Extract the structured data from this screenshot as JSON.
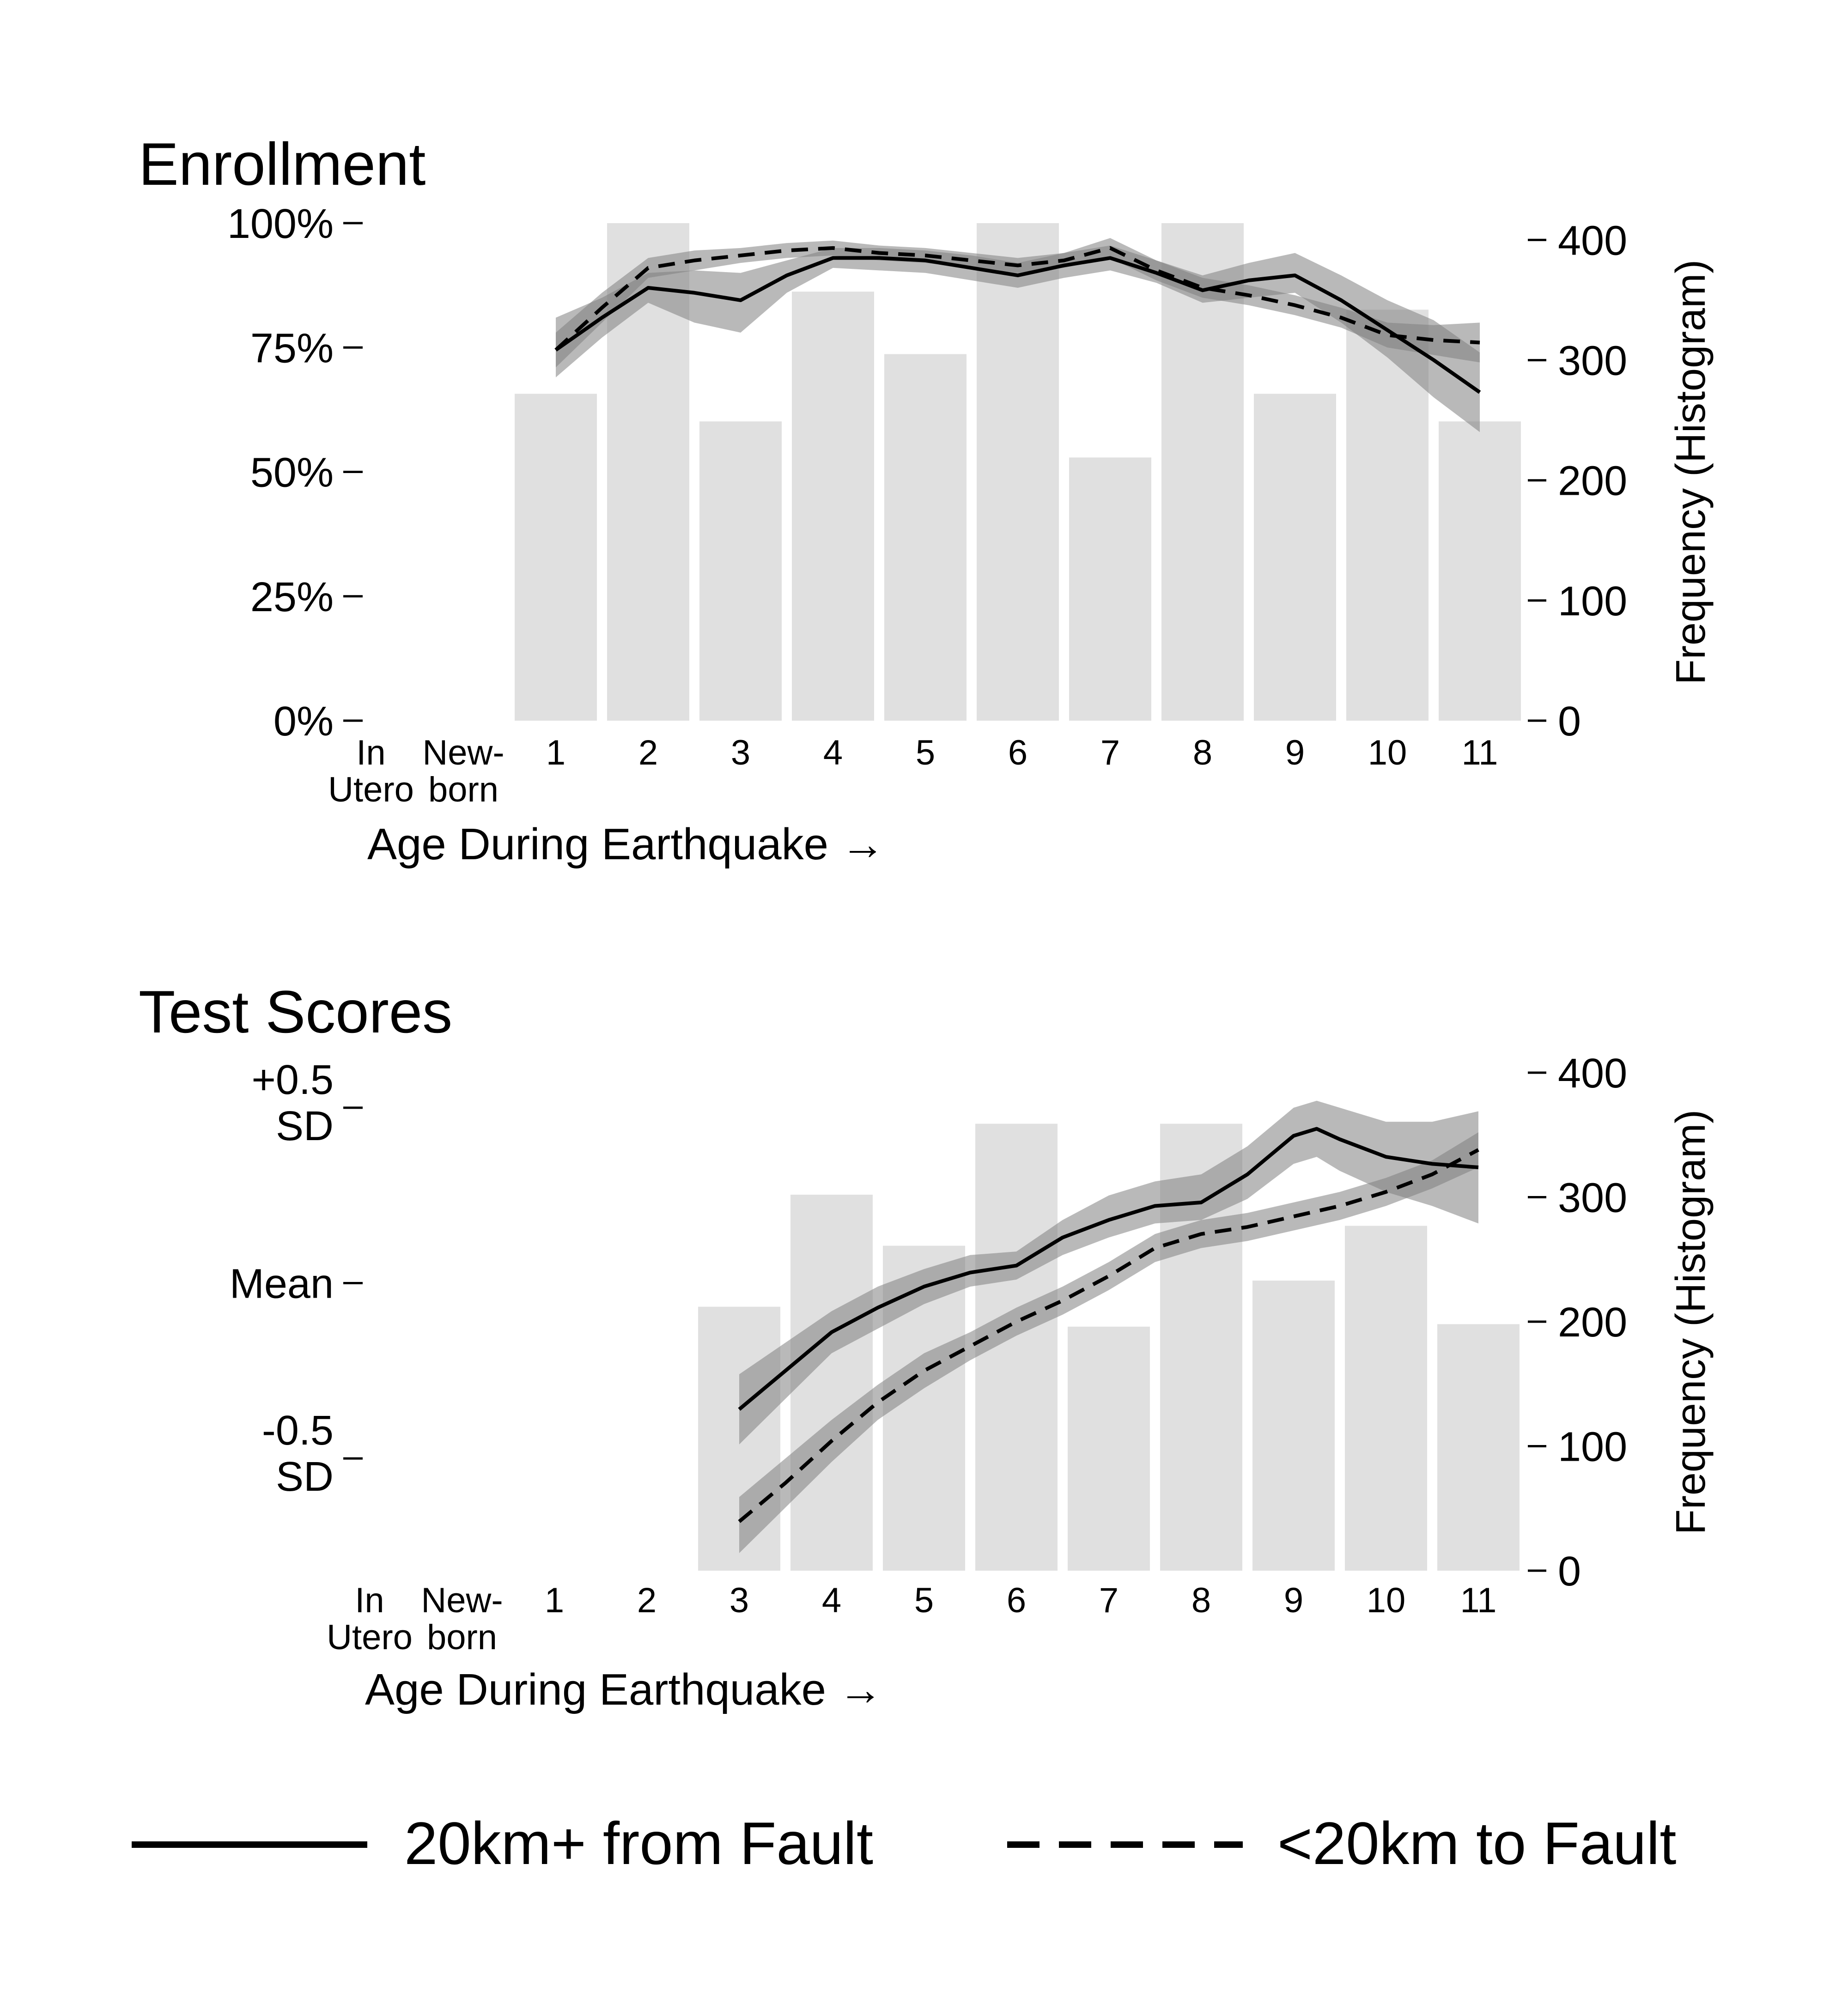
{
  "chart_data": [
    {
      "type": "bar",
      "title": "Enrollment",
      "xlabel": "Age During Earthquake →",
      "ylabel_left": "",
      "ylabel_right": "Frequency (Histogram)",
      "categories": [
        [
          "In",
          "Utero"
        ],
        [
          "New-",
          "born"
        ],
        "1",
        "2",
        "3",
        "4",
        "5",
        "6",
        "7",
        "8",
        "9",
        "10",
        "11"
      ],
      "y_left": {
        "ticks": [
          "100%",
          "75%",
          "50%",
          "25%",
          "0%"
        ],
        "values": [
          100,
          75,
          50,
          25,
          0
        ],
        "ylim": [
          0,
          100
        ]
      },
      "y_right": {
        "ticks": [
          "400",
          "300",
          "200",
          "100",
          "0"
        ],
        "values": [
          400,
          300,
          200,
          100,
          0
        ],
        "ylim": [
          0,
          414
        ]
      },
      "histogram": {
        "categories": [
          "1",
          "2",
          "3",
          "4",
          "5",
          "6",
          "7",
          "8",
          "9",
          "10",
          "11"
        ],
        "values": [
          272,
          414,
          249,
          357,
          305,
          414,
          219,
          414,
          272,
          342,
          249
        ]
      },
      "series": [
        {
          "name": "20km+ from Fault",
          "style": "solid",
          "x": [
            1,
            1.5,
            2,
            2.5,
            3,
            3.5,
            4,
            4.5,
            5,
            5.5,
            6,
            6.5,
            7,
            7.5,
            8,
            8.5,
            9,
            9.5,
            10,
            10.5,
            11
          ],
          "y": [
            74.5,
            81,
            87,
            86,
            84.5,
            89.5,
            93,
            93,
            92.5,
            91,
            89.5,
            91.5,
            93,
            90,
            86.5,
            88.5,
            89.5,
            84.5,
            78.5,
            72.5,
            66
          ],
          "band_lower": [
            69,
            77,
            84,
            80,
            78,
            86,
            91,
            90.5,
            90,
            88.5,
            87,
            89,
            90.5,
            88,
            84,
            85,
            86,
            80,
            73,
            65,
            58
          ],
          "band_upper": [
            81,
            85,
            90,
            90.5,
            90,
            92.5,
            95,
            95,
            94.5,
            93.5,
            92,
            94,
            95.5,
            92.5,
            89.5,
            92,
            94,
            89.5,
            84.5,
            80.5,
            74
          ]
        },
        {
          "name": "<20km to Fault",
          "style": "dashed",
          "x": [
            1,
            1.5,
            2,
            2.5,
            3,
            3.5,
            4,
            4.5,
            5,
            5.5,
            6,
            6.5,
            7,
            7.5,
            8,
            8.5,
            9,
            9.5,
            10,
            10.5,
            11
          ],
          "y": [
            74.5,
            83,
            91,
            92.5,
            93.5,
            94.5,
            95,
            94,
            93.5,
            92.5,
            91.5,
            92.5,
            95,
            90.5,
            87,
            85.5,
            83.5,
            81,
            77.5,
            76.5,
            76
          ],
          "band_lower": [
            71,
            80,
            89,
            90.5,
            92,
            93,
            93.5,
            92.5,
            92,
            91,
            90,
            91,
            93,
            88.5,
            85,
            83.5,
            81.5,
            79,
            75,
            73.5,
            72
          ],
          "band_upper": [
            78,
            86,
            93,
            94.5,
            95,
            96,
            96.5,
            95.5,
            95,
            94,
            93,
            94,
            97,
            92.5,
            89,
            87.5,
            85.5,
            83,
            80,
            79.5,
            80
          ]
        }
      ]
    },
    {
      "type": "bar",
      "title": "Test Scores",
      "xlabel": "Age During Earthquake →",
      "ylabel_left": "",
      "ylabel_right": "Frequency (Histogram)",
      "categories": [
        [
          "In",
          "Utero"
        ],
        [
          "New-",
          "born"
        ],
        "1",
        "2",
        "3",
        "4",
        "5",
        "6",
        "7",
        "8",
        "9",
        "10",
        "11"
      ],
      "y_left": {
        "ticks": [
          [
            "+0.5",
            "SD"
          ],
          "Mean",
          [
            "-0.5",
            "SD"
          ]
        ],
        "values": [
          0.5,
          0,
          -0.5
        ],
        "ylim": [
          -0.82,
          0.6
        ]
      },
      "y_right": {
        "ticks": [
          "400",
          "300",
          "200",
          "100",
          "0"
        ],
        "values": [
          400,
          300,
          200,
          100,
          0
        ],
        "ylim": [
          0,
          400
        ]
      },
      "histogram": {
        "categories": [
          "3",
          "4",
          "5",
          "6",
          "7",
          "8",
          "9",
          "10",
          "11"
        ],
        "values": [
          212,
          302,
          261,
          359,
          196,
          359,
          233,
          277,
          198
        ]
      },
      "series": [
        {
          "name": "20km+ from Fault",
          "style": "solid",
          "x": [
            3,
            3.5,
            4,
            4.5,
            5,
            5.5,
            6,
            6.5,
            7,
            7.5,
            8,
            8.5,
            9,
            9.25,
            9.5,
            10,
            10.5,
            11
          ],
          "y": [
            -0.36,
            -0.25,
            -0.14,
            -0.07,
            -0.01,
            0.03,
            0.05,
            0.13,
            0.18,
            0.22,
            0.23,
            0.31,
            0.42,
            0.44,
            0.41,
            0.36,
            0.34,
            0.33
          ],
          "band_lower": [
            -0.46,
            -0.33,
            -0.2,
            -0.13,
            -0.06,
            -0.01,
            0.01,
            0.08,
            0.13,
            0.17,
            0.18,
            0.24,
            0.34,
            0.36,
            0.32,
            0.26,
            0.22,
            0.17
          ],
          "band_upper": [
            -0.26,
            -0.17,
            -0.08,
            -0.01,
            0.04,
            0.08,
            0.09,
            0.18,
            0.25,
            0.29,
            0.31,
            0.39,
            0.5,
            0.52,
            0.5,
            0.46,
            0.46,
            0.49
          ]
        },
        {
          "name": "<20km to Fault",
          "style": "dashed",
          "x": [
            3,
            3.5,
            4,
            4.5,
            5,
            5.5,
            6,
            6.5,
            7,
            7.5,
            8,
            8.5,
            9,
            9.5,
            10,
            10.5,
            11
          ],
          "y": [
            -0.68,
            -0.57,
            -0.45,
            -0.34,
            -0.25,
            -0.18,
            -0.11,
            -0.05,
            0.02,
            0.1,
            0.14,
            0.16,
            0.19,
            0.22,
            0.26,
            0.31,
            0.38
          ],
          "band_lower": [
            -0.77,
            -0.64,
            -0.51,
            -0.39,
            -0.3,
            -0.22,
            -0.15,
            -0.09,
            -0.02,
            0.06,
            0.1,
            0.12,
            0.15,
            0.18,
            0.22,
            0.27,
            0.33
          ],
          "band_upper": [
            -0.61,
            -0.5,
            -0.39,
            -0.29,
            -0.2,
            -0.14,
            -0.07,
            -0.01,
            0.06,
            0.14,
            0.18,
            0.2,
            0.23,
            0.26,
            0.3,
            0.35,
            0.43
          ]
        }
      ]
    }
  ],
  "legend": {
    "placement": "bottom",
    "items": [
      {
        "label": "20km+ from Fault",
        "style": "solid"
      },
      {
        "label": "<20km to Fault",
        "style": "dashed"
      }
    ]
  },
  "colors": {
    "bar": "#e0e0e0",
    "band": "#7f7f7f",
    "line": "#000000"
  }
}
